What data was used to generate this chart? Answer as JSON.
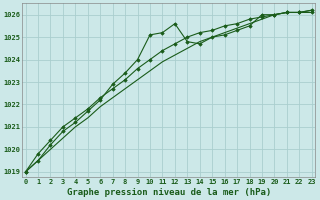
{
  "x": [
    0,
    1,
    2,
    3,
    4,
    5,
    6,
    7,
    8,
    9,
    10,
    11,
    12,
    13,
    14,
    15,
    16,
    17,
    18,
    19,
    20,
    21,
    22,
    23
  ],
  "line1": [
    1019.0,
    1019.5,
    1020.2,
    1020.8,
    1021.2,
    1021.7,
    1022.2,
    1022.9,
    1023.4,
    1024.0,
    1025.1,
    1025.2,
    1025.6,
    1024.8,
    1024.7,
    1025.0,
    1025.1,
    1025.3,
    1025.5,
    1026.0,
    1026.0,
    1026.1,
    1026.1,
    1026.1
  ],
  "line2": [
    1019.0,
    1019.8,
    1020.4,
    1021.0,
    1021.4,
    1021.8,
    1022.3,
    1022.7,
    1023.1,
    1023.6,
    1024.0,
    1024.4,
    1024.7,
    1025.0,
    1025.2,
    1025.3,
    1025.5,
    1025.6,
    1025.8,
    1025.9,
    1026.0,
    1026.1,
    1026.1,
    1026.2
  ],
  "line3": [
    1019.0,
    1019.5,
    1020.0,
    1020.5,
    1021.0,
    1021.4,
    1021.9,
    1022.3,
    1022.7,
    1023.1,
    1023.5,
    1023.9,
    1024.2,
    1024.5,
    1024.8,
    1025.0,
    1025.2,
    1025.4,
    1025.6,
    1025.8,
    1026.0,
    1026.1,
    1026.1,
    1026.2
  ],
  "ylim": [
    1018.75,
    1026.5
  ],
  "yticks": [
    1019,
    1020,
    1021,
    1022,
    1023,
    1024,
    1025,
    1026
  ],
  "xticks": [
    0,
    1,
    2,
    3,
    4,
    5,
    6,
    7,
    8,
    9,
    10,
    11,
    12,
    13,
    14,
    15,
    16,
    17,
    18,
    19,
    20,
    21,
    22,
    23
  ],
  "xlabel": "Graphe pression niveau de la mer (hPa)",
  "bg_color": "#cce8e8",
  "line_color": "#1a5c1a",
  "grid_color": "#aacece",
  "axis_color": "#888888",
  "text_color": "#1a5c1a",
  "marker": "D",
  "linewidth": 0.8,
  "markersize": 1.8,
  "tick_fontsize": 5.0,
  "label_fontsize": 6.5
}
